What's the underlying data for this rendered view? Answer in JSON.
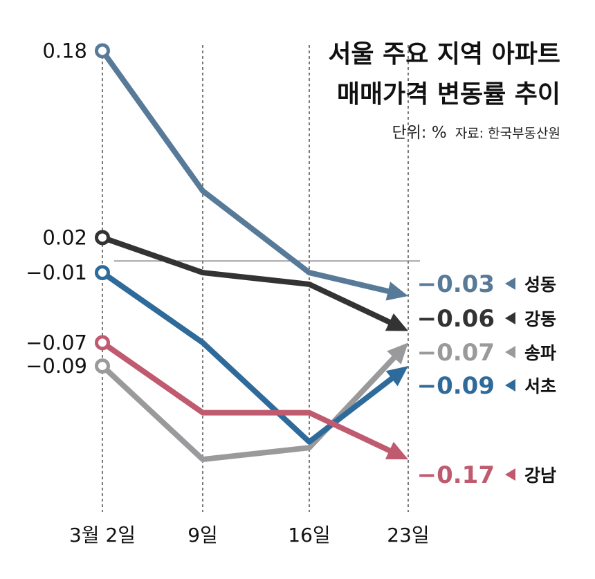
{
  "chart_data": {
    "type": "line",
    "title_lines": [
      "서울 주요 지역 아파트",
      "매매가격 변동률 추이"
    ],
    "unit": "단위: %",
    "source": "자료: 한국부동산원",
    "categories": [
      "3월 2일",
      "9일",
      "16일",
      "23일"
    ],
    "ylim": [
      -0.215,
      0.185
    ],
    "y_tick_labels": [
      "0.18",
      "0.02",
      "−0.01",
      "−0.07",
      "−0.09"
    ],
    "zero_line": 0,
    "series": [
      {
        "name": "성동",
        "color": "#587a99",
        "values": [
          0.18,
          0.06,
          -0.01,
          -0.03
        ],
        "end_label": "−0.03"
      },
      {
        "name": "강동",
        "color": "#333333",
        "values": [
          0.02,
          -0.01,
          -0.02,
          -0.06
        ],
        "end_label": "−0.06"
      },
      {
        "name": "송파",
        "color": "#9a9a9c",
        "values": [
          -0.09,
          -0.17,
          -0.16,
          -0.07
        ],
        "end_label": "−0.07"
      },
      {
        "name": "서초",
        "color": "#2e6b9b",
        "values": [
          -0.01,
          -0.07,
          -0.155,
          -0.09
        ],
        "end_label": "−0.09"
      },
      {
        "name": "강남",
        "color": "#c05a6e",
        "values": [
          -0.07,
          -0.13,
          -0.13,
          -0.17
        ],
        "end_label": "−0.17"
      }
    ]
  }
}
